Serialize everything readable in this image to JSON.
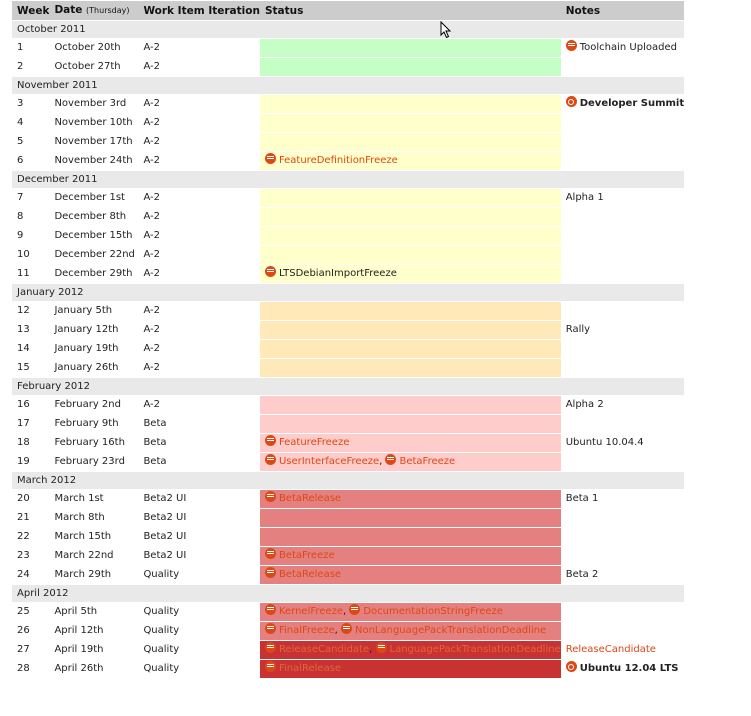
{
  "headers": {
    "week": "Week",
    "date": "Date",
    "date_sub": "(Thursday)",
    "iteration": "Work Item Iteration",
    "status": "Status",
    "notes": "Notes"
  },
  "months": {
    "oct2011": "October 2011",
    "nov2011": "November 2011",
    "dec2011": "December 2011",
    "jan2012": "January 2012",
    "feb2012": "February 2012",
    "mar2012": "March 2012",
    "apr2012": "April 2012"
  },
  "rows": {
    "r1": {
      "week": "1",
      "date": "October 20th",
      "iter": "A-2",
      "note": "Toolchain Uploaded"
    },
    "r2": {
      "week": "2",
      "date": "October 27th",
      "iter": "A-2"
    },
    "r3": {
      "week": "3",
      "date": "November 3rd",
      "iter": "A-2",
      "note": "Developer Summit"
    },
    "r4": {
      "week": "4",
      "date": "November 10th",
      "iter": "A-2"
    },
    "r5": {
      "week": "5",
      "date": "November 17th",
      "iter": "A-2"
    },
    "r6": {
      "week": "6",
      "date": "November 24th",
      "iter": "A-2",
      "ev1": "FeatureDefinitionFreeze"
    },
    "r7": {
      "week": "7",
      "date": "December 1st",
      "iter": "A-2",
      "note": "Alpha 1"
    },
    "r8": {
      "week": "8",
      "date": "December 8th",
      "iter": "A-2"
    },
    "r9": {
      "week": "9",
      "date": "December 15th",
      "iter": "A-2"
    },
    "r10": {
      "week": "10",
      "date": "December 22nd",
      "iter": "A-2"
    },
    "r11": {
      "week": "11",
      "date": "December 29th",
      "iter": "A-2",
      "ev1": "LTSDebianImportFreeze"
    },
    "r12": {
      "week": "12",
      "date": "January 5th",
      "iter": "A-2"
    },
    "r13": {
      "week": "13",
      "date": "January 12th",
      "iter": "A-2",
      "note": "Rally"
    },
    "r14": {
      "week": "14",
      "date": "January 19th",
      "iter": "A-2"
    },
    "r15": {
      "week": "15",
      "date": "January 26th",
      "iter": "A-2"
    },
    "r16": {
      "week": "16",
      "date": "February 2nd",
      "iter": "A-2",
      "note": "Alpha 2"
    },
    "r17": {
      "week": "17",
      "date": "February 9th",
      "iter": "Beta"
    },
    "r18": {
      "week": "18",
      "date": "February 16th",
      "iter": "Beta",
      "ev1": "FeatureFreeze",
      "note": "Ubuntu 10.04.4"
    },
    "r19": {
      "week": "19",
      "date": "February 23rd",
      "iter": "Beta",
      "ev1": "UserInterfaceFreeze",
      "ev2": "BetaFreeze"
    },
    "r20": {
      "week": "20",
      "date": "March 1st",
      "iter": "Beta2 UI",
      "ev1": "BetaRelease",
      "note": "Beta 1"
    },
    "r21": {
      "week": "21",
      "date": "March 8th",
      "iter": "Beta2 UI"
    },
    "r22": {
      "week": "22",
      "date": "March 15th",
      "iter": "Beta2 UI"
    },
    "r23": {
      "week": "23",
      "date": "March 22nd",
      "iter": "Beta2 UI",
      "ev1": "BetaFreeze"
    },
    "r24": {
      "week": "24",
      "date": "March 29th",
      "iter": "Quality",
      "ev1": "BetaRelease",
      "note": "Beta 2"
    },
    "r25": {
      "week": "25",
      "date": "April 5th",
      "iter": "Quality",
      "ev1": "KernelFreeze",
      "ev2": "DocumentationStringFreeze"
    },
    "r26": {
      "week": "26",
      "date": "April 12th",
      "iter": "Quality",
      "ev1": "FinalFreeze",
      "ev2": "NonLanguagePackTranslationDeadline"
    },
    "r27": {
      "week": "27",
      "date": "April 19th",
      "iter": "Quality",
      "ev1": "ReleaseCandidate",
      "ev2": "LanguagePackTranslationDeadline",
      "note": "ReleaseCandidate"
    },
    "r28": {
      "week": "28",
      "date": "April 26th",
      "iter": "Quality",
      "ev1": "FinalRelease",
      "note": "Ubuntu 12.04 LTS"
    }
  },
  "separator": ", ",
  "colors": {
    "green": "#c6ffc6",
    "yellow": "#ffffcc",
    "orange": "#ffe9b8",
    "pink": "#ffcccc",
    "red": "#e58080",
    "dark_red": "#c83232",
    "accent": "#dd4814"
  }
}
